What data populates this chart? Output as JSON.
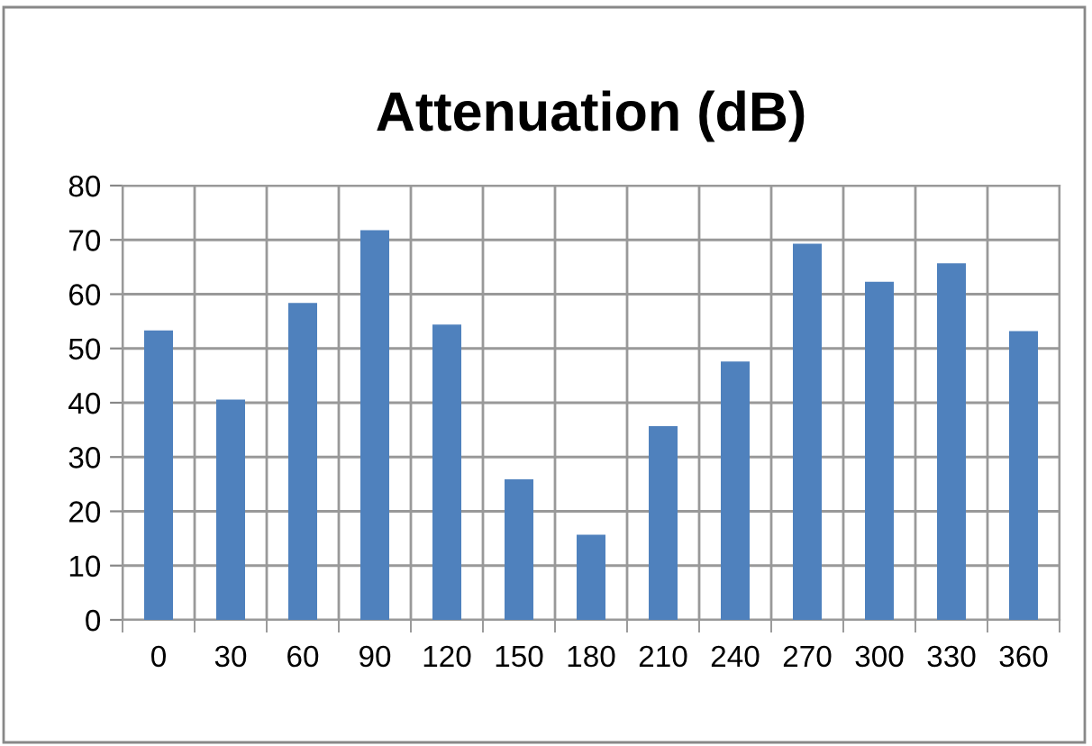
{
  "chart_data": {
    "type": "bar",
    "title": "Attenuation (dB)",
    "categories": [
      "0",
      "30",
      "60",
      "90",
      "120",
      "150",
      "180",
      "210",
      "240",
      "270",
      "300",
      "330",
      "360"
    ],
    "values": [
      53.3,
      40.6,
      58.4,
      71.8,
      54.4,
      25.9,
      15.7,
      35.7,
      47.6,
      69.3,
      62.3,
      65.7,
      53.2
    ],
    "color": "#4f81bd",
    "ylim": [
      0,
      80
    ],
    "yticks": [
      0,
      10,
      20,
      30,
      40,
      50,
      60,
      70,
      80
    ],
    "grid": true,
    "legend": false
  }
}
